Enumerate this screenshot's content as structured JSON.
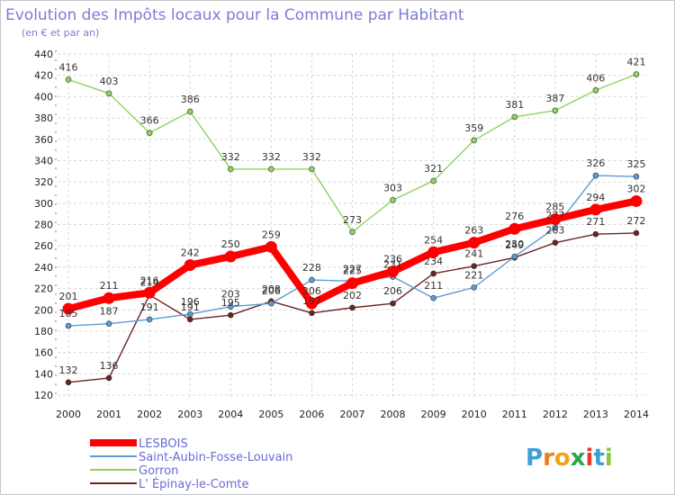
{
  "chart_data": {
    "type": "line",
    "title": "Evolution des Impôts locaux pour la Commune par Habitant",
    "subtitle": "(en € et par an)",
    "x": [
      "2000",
      "2001",
      "2002",
      "2003",
      "2004",
      "2005",
      "2006",
      "2007",
      "2008",
      "2009",
      "2010",
      "2011",
      "2012",
      "2013",
      "2014"
    ],
    "ylim": [
      120,
      440
    ],
    "yticks": [
      120,
      140,
      160,
      180,
      200,
      220,
      240,
      260,
      280,
      300,
      320,
      340,
      360,
      380,
      400,
      420,
      440
    ],
    "grid": true,
    "series": [
      {
        "name": "LESBOIS",
        "color": "#ff0000",
        "values": [
          201,
          211,
          216,
          242,
          250,
          259,
          206,
          225,
          236,
          254,
          263,
          276,
          285,
          294,
          302
        ],
        "labels": [
          "201",
          "211",
          "216",
          "242",
          "250",
          "259",
          "206",
          "225",
          "236",
          "254",
          "263",
          "276",
          "285",
          "294",
          "302"
        ]
      },
      {
        "name": "Saint-Aubin-Fosse-Louvain",
        "color": "#5d9bd3",
        "values": [
          185,
          187,
          191,
          196,
          203,
          206,
          228,
          227,
          231,
          211,
          221,
          250,
          277,
          326,
          325
        ],
        "labels": [
          "185",
          "187",
          "191",
          "196",
          "203",
          "206",
          "228",
          "227",
          "231",
          "211",
          "221",
          "250",
          "277",
          "326",
          "325"
        ]
      },
      {
        "name": "Gorron",
        "color": "#8dd35f",
        "values": [
          416,
          403,
          366,
          386,
          332,
          332,
          332,
          273,
          303,
          321,
          359,
          381,
          387,
          406,
          421
        ],
        "labels": [
          "416",
          "403",
          "366",
          "386",
          "332",
          "332",
          "332",
          "273",
          "303",
          "321",
          "359",
          "381",
          "387",
          "406",
          "421"
        ]
      },
      {
        "name": "L' Épinay-le-Comte",
        "color": "#6e2222",
        "values": [
          132,
          136,
          214,
          191,
          195,
          208,
          197,
          202,
          206,
          234,
          241,
          249,
          263,
          271,
          272
        ],
        "labels": [
          "132",
          "136",
          "214",
          "191",
          "195",
          "208",
          "197",
          "202",
          "206",
          "234",
          "241",
          "249",
          "263",
          "271",
          "272"
        ]
      }
    ],
    "legend_position": "bottom-left"
  },
  "brand": {
    "letters": [
      "P",
      "r",
      "o",
      "x",
      "i",
      "t",
      "i"
    ],
    "colors": [
      "#3b9fd9",
      "#f07c1a",
      "#f0a21a",
      "#2aa64a",
      "#e23a2a",
      "#3b9fd9",
      "#8cc63f"
    ]
  }
}
